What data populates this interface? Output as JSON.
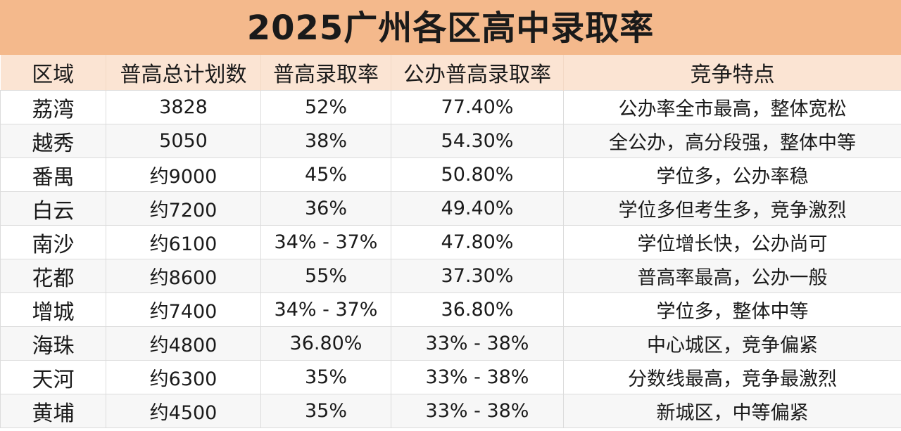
{
  "title": "2025广州各区高中录取率",
  "table": {
    "headers": [
      "区域",
      "普高总计划数",
      "普高录取率",
      "公办普高录取率",
      "竞争特点"
    ],
    "rows": [
      [
        "荔湾",
        "3828",
        "52%",
        "77.40%",
        "公办率全市最高，整体宽松"
      ],
      [
        "越秀",
        "5050",
        "38%",
        "54.30%",
        "全公办，高分段强，整体中等"
      ],
      [
        "番禺",
        "约9000",
        "45%",
        "50.80%",
        "学位多，公办率稳"
      ],
      [
        "白云",
        "约7200",
        "36%",
        "49.40%",
        "学位多但考生多，竞争激烈"
      ],
      [
        "南沙",
        "约6100",
        "34% - 37%",
        "47.80%",
        "学位增长快，公办尚可"
      ],
      [
        "花都",
        "约8600",
        "55%",
        "37.30%",
        "普高率最高，公办一般"
      ],
      [
        "增城",
        "约7400",
        "34% - 37%",
        "36.80%",
        "学位多，整体中等"
      ],
      [
        "海珠",
        "约4800",
        "36.80%",
        "33% - 38%",
        "中心城区，竞争偏紧"
      ],
      [
        "天河",
        "约6300",
        "35%",
        "33% - 38%",
        "分数线最高，竞争最激烈"
      ],
      [
        "黄埔",
        "约4500",
        "35%",
        "33% - 38%",
        "新城区，中等偏紧"
      ]
    ]
  }
}
